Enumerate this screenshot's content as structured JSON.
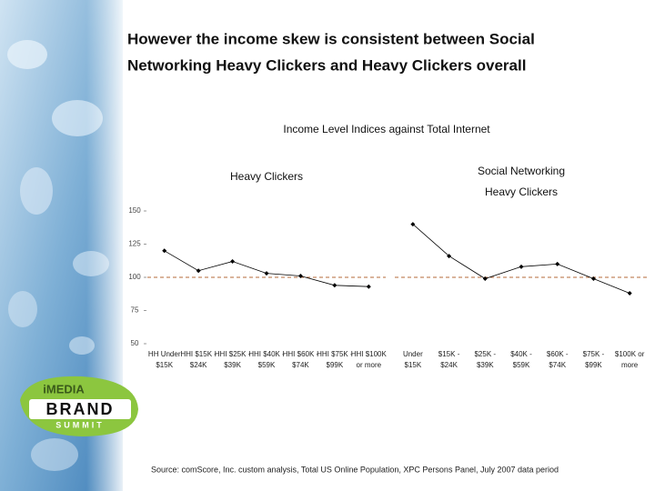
{
  "title": [
    "However the income skew is consistent between Social",
    "Networking Heavy Clickers and Heavy Clickers overall"
  ],
  "subtitle": "Income Level Indices against Total Internet",
  "source": "Source:  comScore, Inc. custom analysis, Total US Online Population, XPC Persons Panel, July 2007 data period",
  "logo": {
    "top": "iMEDIA",
    "middle": "BRAND",
    "bottom": "SUMMIT"
  },
  "chart_data": [
    {
      "type": "line",
      "title": "Heavy Clickers",
      "categories": [
        [
          "HH Under",
          "$15K"
        ],
        [
          "HHI $15K -",
          "$24K"
        ],
        [
          "HHI $25K -",
          "$39K"
        ],
        [
          "HHI $40K -",
          "$59K"
        ],
        [
          "HHI $60K -",
          "$74K"
        ],
        [
          "HHI $75K -",
          "$99K"
        ],
        [
          "HHI $100K",
          "or more"
        ]
      ],
      "values": [
        120,
        105,
        112,
        103,
        101,
        94,
        93
      ],
      "color": "#000000",
      "ylim": [
        50,
        150
      ],
      "yticks": [
        50,
        75,
        100,
        125,
        150
      ],
      "reference_line": 100,
      "reference_color": "#b5683a"
    },
    {
      "type": "line",
      "title": [
        "Social Networking",
        "Heavy Clickers"
      ],
      "categories": [
        [
          "Under",
          "$15K"
        ],
        [
          "$15K -",
          "$24K"
        ],
        [
          "$25K -",
          "$39K"
        ],
        [
          "$40K -",
          "$59K"
        ],
        [
          "$60K -",
          "$74K"
        ],
        [
          "$75K -",
          "$99K"
        ],
        [
          "$100K or",
          "more"
        ]
      ],
      "values": [
        140,
        116,
        99,
        108,
        110,
        99,
        88
      ],
      "color": "#000000",
      "ylim": [
        50,
        150
      ],
      "reference_line": 100,
      "reference_color": "#b5683a"
    }
  ]
}
